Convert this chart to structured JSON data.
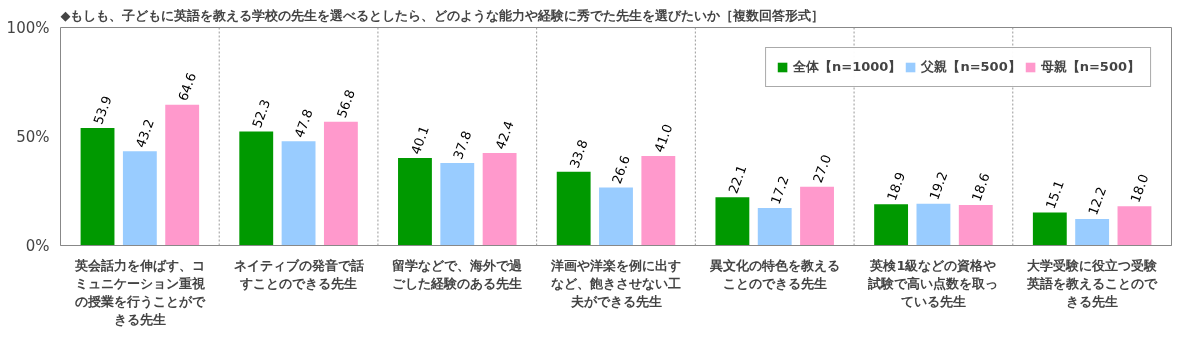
{
  "chart_data": {
    "type": "bar",
    "title": "◆もしも、子どもに英語を教える学校の先生を選べるとしたら、どのような能力や経験に秀でた先生を選びたいか［複数回答形式］",
    "categories": [
      "英会話力を伸ばす、コミュニケーション重視の授業を行うことができる先生",
      "ネイティブの発音で話すことのできる先生",
      "留学などで、海外で過ごした経験のある先生",
      "洋画や洋楽を例に出すなど、飽きさせない工夫ができる先生",
      "異文化の特色を教えることのできる先生",
      "英検1級などの資格や試験で高い点数を取っている先生",
      "大学受験に役立つ受験英語を教えることのできる先生"
    ],
    "series": [
      {
        "name": "全体【n=1000】",
        "color": "#009900",
        "values": [
          53.9,
          52.3,
          40.1,
          33.8,
          22.1,
          18.9,
          15.1
        ],
        "value_labels": [
          "53.9",
          "52.3",
          "40.1",
          "33.8",
          "22.1",
          "18.9",
          "15.1"
        ]
      },
      {
        "name": "父親【n=500】",
        "color": "#99ccff",
        "values": [
          43.2,
          47.8,
          37.8,
          26.6,
          17.2,
          19.2,
          12.2
        ],
        "value_labels": [
          "43.2",
          "47.8",
          "37.8",
          "26.6",
          "17.2",
          "19.2",
          "12.2"
        ]
      },
      {
        "name": "母親【n=500】",
        "color": "#ff99cc",
        "values": [
          64.6,
          56.8,
          42.4,
          41.0,
          27.0,
          18.6,
          18.0
        ],
        "value_labels": [
          "64.6",
          "56.8",
          "42.4",
          "41.0",
          "27.0",
          "18.6",
          "18.0"
        ]
      }
    ],
    "ylim": [
      0,
      100
    ],
    "yticks": [
      {
        "value": 0,
        "label": "0%"
      },
      {
        "value": 50,
        "label": "50%"
      },
      {
        "value": 100,
        "label": "100%"
      }
    ],
    "grid": "x",
    "legend": "top right"
  }
}
